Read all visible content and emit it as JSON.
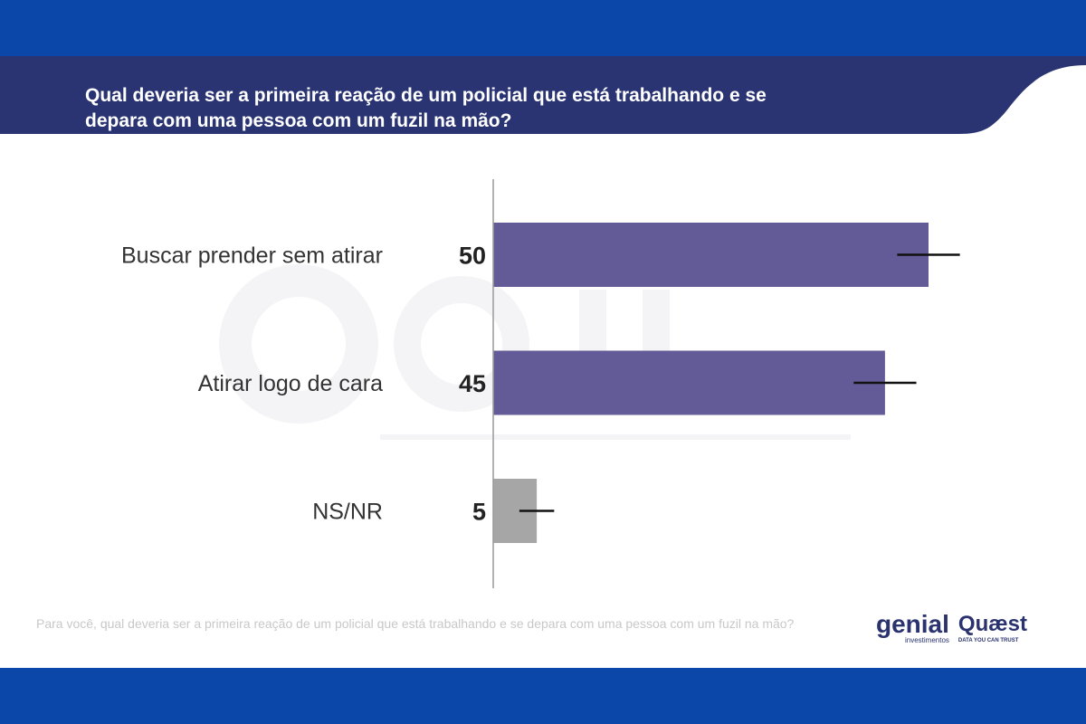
{
  "title": "Qual deveria ser a primeira reação de um policial que está trabalhando e se depara com uma pessoa com um fuzil na mão?",
  "footer_note": "Para você, qual deveria ser a primeira reação de um policial que está trabalhando e se depara com uma pessoa com um fuzil na mão?",
  "watermark": {
    "main": "genial",
    "sub": "investimentos"
  },
  "logos": {
    "genial": "genial",
    "genial_sub": "investimentos",
    "quaest": "Quæst",
    "quaest_sub": "DATA YOU CAN TRUST"
  },
  "colors": {
    "band": "#0a47a9",
    "header": "#2a3473",
    "bar": "#635b97",
    "bar_other": "#a6a6a6"
  },
  "chart_data": {
    "type": "bar",
    "orientation": "horizontal",
    "categories": [
      "Buscar prender sem atirar",
      "Atirar logo de cara",
      "NS/NR"
    ],
    "values": [
      50,
      45,
      5
    ],
    "error_margin": [
      3.6,
      3.6,
      2
    ],
    "xlim": [
      0,
      60
    ],
    "grid": false
  }
}
